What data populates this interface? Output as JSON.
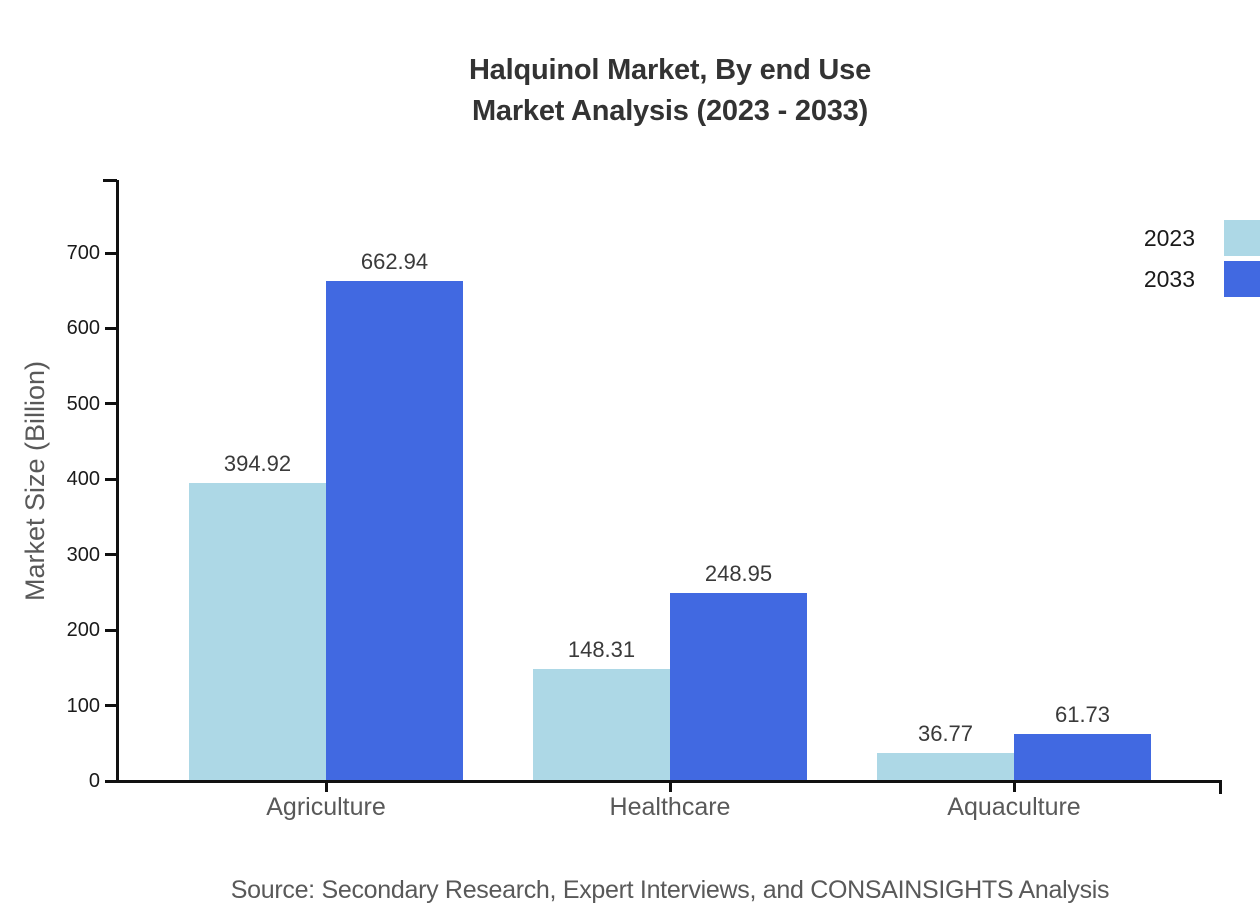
{
  "title": {
    "line1": "Halquinol Market, By end Use",
    "line2": "Market Analysis (2023 - 2033)"
  },
  "source": "Source: Secondary Research, Expert Interviews, and CONSAINSIGHTS Analysis",
  "chart_data": {
    "type": "bar",
    "title": "Halquinol Market, By end Use Market Analysis (2023 - 2033)",
    "categories": [
      "Agriculture",
      "Healthcare",
      "Aquaculture"
    ],
    "series": [
      {
        "name": "2023",
        "color": "#ADD8E6",
        "values": [
          394.92,
          148.31,
          36.77
        ]
      },
      {
        "name": "2033",
        "color": "#4169E1",
        "values": [
          662.94,
          248.95,
          61.73
        ]
      }
    ],
    "xlabel": "",
    "ylabel": "Market Size (Billion)",
    "yticks": [
      0,
      100,
      200,
      300,
      400,
      500,
      600,
      700
    ],
    "ylim": [
      0,
      797
    ],
    "grid": false,
    "legend_position": "top-right",
    "value_labels": true
  },
  "colors": {
    "series_2023": "#ADD8E6",
    "series_2033": "#4169E1",
    "axis": "#111111",
    "title_text": "#333333",
    "muted_text": "#595959",
    "tick_text": "#1A1A1A",
    "value_text": "#3A3A3A",
    "background": "#FFFFFF"
  }
}
